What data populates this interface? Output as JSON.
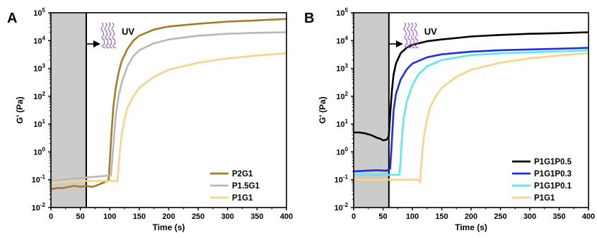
{
  "chart_data": [
    {
      "panel": "A",
      "type": "line",
      "xlabel": "Time (s)",
      "ylabel": "G' (Pa)",
      "xlim": [
        0,
        400
      ],
      "ylim": [
        0.01,
        100000
      ],
      "yscale": "log",
      "xticks": [
        "0",
        "50",
        "100",
        "150",
        "200",
        "250",
        "300",
        "350",
        "400"
      ],
      "ytick_bases": [
        "10",
        "10",
        "10",
        "10",
        "10",
        "10",
        "10",
        "10"
      ],
      "ytick_exponents": [
        "-2",
        "-1",
        "0",
        "1",
        "2",
        "3",
        "4",
        "5"
      ],
      "shaded_region": [
        0,
        60
      ],
      "uv_onset": 60,
      "uv_label": "UV",
      "legend_position": "bottom-right",
      "series": [
        {
          "name": "P2G1",
          "color": "#a87a28",
          "points": [
            [
              0,
              0.045
            ],
            [
              10,
              0.05
            ],
            [
              20,
              0.05
            ],
            [
              30,
              0.055
            ],
            [
              40,
              0.06
            ],
            [
              50,
              0.055
            ],
            [
              60,
              0.06
            ],
            [
              70,
              0.055
            ],
            [
              80,
              0.065
            ],
            [
              90,
              0.08
            ],
            [
              98,
              0.1
            ],
            [
              100,
              0.5
            ],
            [
              103,
              5
            ],
            [
              106,
              40
            ],
            [
              110,
              200
            ],
            [
              115,
              700
            ],
            [
              120,
              1800
            ],
            [
              130,
              5000
            ],
            [
              140,
              10000
            ],
            [
              150,
              15000
            ],
            [
              175,
              25000
            ],
            [
              200,
              32000
            ],
            [
              250,
              40000
            ],
            [
              300,
              48000
            ],
            [
              350,
              53000
            ],
            [
              400,
              60000
            ]
          ]
        },
        {
          "name": "P1.5G1",
          "color": "#b8b8b8",
          "points": [
            [
              0,
              0.09
            ],
            [
              20,
              0.1
            ],
            [
              40,
              0.11
            ],
            [
              60,
              0.12
            ],
            [
              80,
              0.13
            ],
            [
              98,
              0.14
            ],
            [
              102,
              0.14
            ],
            [
              104,
              0.5
            ],
            [
              107,
              3
            ],
            [
              110,
              20
            ],
            [
              115,
              100
            ],
            [
              120,
              300
            ],
            [
              130,
              1200
            ],
            [
              140,
              2800
            ],
            [
              150,
              4500
            ],
            [
              175,
              8000
            ],
            [
              200,
              11000
            ],
            [
              250,
              15000
            ],
            [
              300,
              17500
            ],
            [
              350,
              19000
            ],
            [
              400,
              20000
            ]
          ]
        },
        {
          "name": "P1G1",
          "color": "#f5d48a",
          "points": [
            [
              0,
              0.08
            ],
            [
              20,
              0.085
            ],
            [
              40,
              0.09
            ],
            [
              60,
              0.09
            ],
            [
              80,
              0.09
            ],
            [
              100,
              0.09
            ],
            [
              110,
              0.09
            ],
            [
              113,
              0.085
            ],
            [
              115,
              0.3
            ],
            [
              117,
              1
            ],
            [
              120,
              4
            ],
            [
              125,
              15
            ],
            [
              130,
              40
            ],
            [
              140,
              100
            ],
            [
              150,
              200
            ],
            [
              175,
              500
            ],
            [
              200,
              900
            ],
            [
              250,
              1600
            ],
            [
              300,
              2300
            ],
            [
              350,
              2900
            ],
            [
              400,
              3500
            ]
          ]
        }
      ]
    },
    {
      "panel": "B",
      "type": "line",
      "xlabel": "Time (s)",
      "ylabel": "G' (Pa)",
      "xlim": [
        0,
        400
      ],
      "ylim": [
        0.01,
        100000
      ],
      "yscale": "log",
      "xticks": [
        "0",
        "50",
        "100",
        "150",
        "200",
        "250",
        "300",
        "350",
        "400"
      ],
      "ytick_bases": [
        "10",
        "10",
        "10",
        "10",
        "10",
        "10",
        "10",
        "10"
      ],
      "ytick_exponents": [
        "-2",
        "-1",
        "0",
        "1",
        "2",
        "3",
        "4",
        "5"
      ],
      "shaded_region": [
        0,
        60
      ],
      "uv_onset": 60,
      "uv_label": "UV",
      "legend_position": "bottom-right",
      "series": [
        {
          "name": "P1G1P0.5",
          "color": "#000000",
          "points": [
            [
              0,
              5
            ],
            [
              10,
              5
            ],
            [
              20,
              4.6
            ],
            [
              30,
              4
            ],
            [
              40,
              3.2
            ],
            [
              45,
              3
            ],
            [
              50,
              2.6
            ],
            [
              55,
              2.7
            ],
            [
              58,
              3
            ],
            [
              60,
              4
            ],
            [
              62,
              20
            ],
            [
              65,
              150
            ],
            [
              68,
              600
            ],
            [
              72,
              1500
            ],
            [
              80,
              3500
            ],
            [
              90,
              5500
            ],
            [
              100,
              7000
            ],
            [
              125,
              9500
            ],
            [
              150,
              11000
            ],
            [
              200,
              14000
            ],
            [
              250,
              16000
            ],
            [
              300,
              17500
            ],
            [
              350,
              18500
            ],
            [
              400,
              20000
            ]
          ]
        },
        {
          "name": "P1G1P0.3",
          "color": "#1e2ee6",
          "points": [
            [
              0,
              0.2
            ],
            [
              20,
              0.21
            ],
            [
              40,
              0.22
            ],
            [
              55,
              0.21
            ],
            [
              60,
              0.23
            ],
            [
              62,
              0.25
            ],
            [
              64,
              1
            ],
            [
              66,
              6
            ],
            [
              68,
              30
            ],
            [
              72,
              120
            ],
            [
              80,
              400
            ],
            [
              90,
              900
            ],
            [
              100,
              1500
            ],
            [
              125,
              2500
            ],
            [
              150,
              3200
            ],
            [
              200,
              4000
            ],
            [
              250,
              4500
            ],
            [
              300,
              4800
            ],
            [
              350,
              5100
            ],
            [
              400,
              5500
            ]
          ]
        },
        {
          "name": "P1G1P0.1",
          "color": "#5ae8f2",
          "points": [
            [
              0,
              0.15
            ],
            [
              30,
              0.15
            ],
            [
              60,
              0.15
            ],
            [
              78,
              0.15
            ],
            [
              80,
              0.5
            ],
            [
              82,
              3
            ],
            [
              85,
              15
            ],
            [
              90,
              60
            ],
            [
              100,
              250
            ],
            [
              110,
              600
            ],
            [
              125,
              1200
            ],
            [
              150,
              2000
            ],
            [
              200,
              3000
            ],
            [
              250,
              3500
            ],
            [
              300,
              3800
            ],
            [
              350,
              4100
            ],
            [
              400,
              4500
            ]
          ]
        },
        {
          "name": "P1G1",
          "color": "#f5d48a",
          "points": [
            [
              0,
              0.1
            ],
            [
              40,
              0.1
            ],
            [
              80,
              0.1
            ],
            [
              110,
              0.1
            ],
            [
              113,
              0.08
            ],
            [
              115,
              0.3
            ],
            [
              117,
              1
            ],
            [
              120,
              4
            ],
            [
              125,
              15
            ],
            [
              130,
              40
            ],
            [
              140,
              100
            ],
            [
              150,
              200
            ],
            [
              175,
              500
            ],
            [
              200,
              900
            ],
            [
              250,
              1600
            ],
            [
              300,
              2300
            ],
            [
              350,
              2900
            ],
            [
              400,
              3500
            ]
          ]
        }
      ]
    }
  ]
}
